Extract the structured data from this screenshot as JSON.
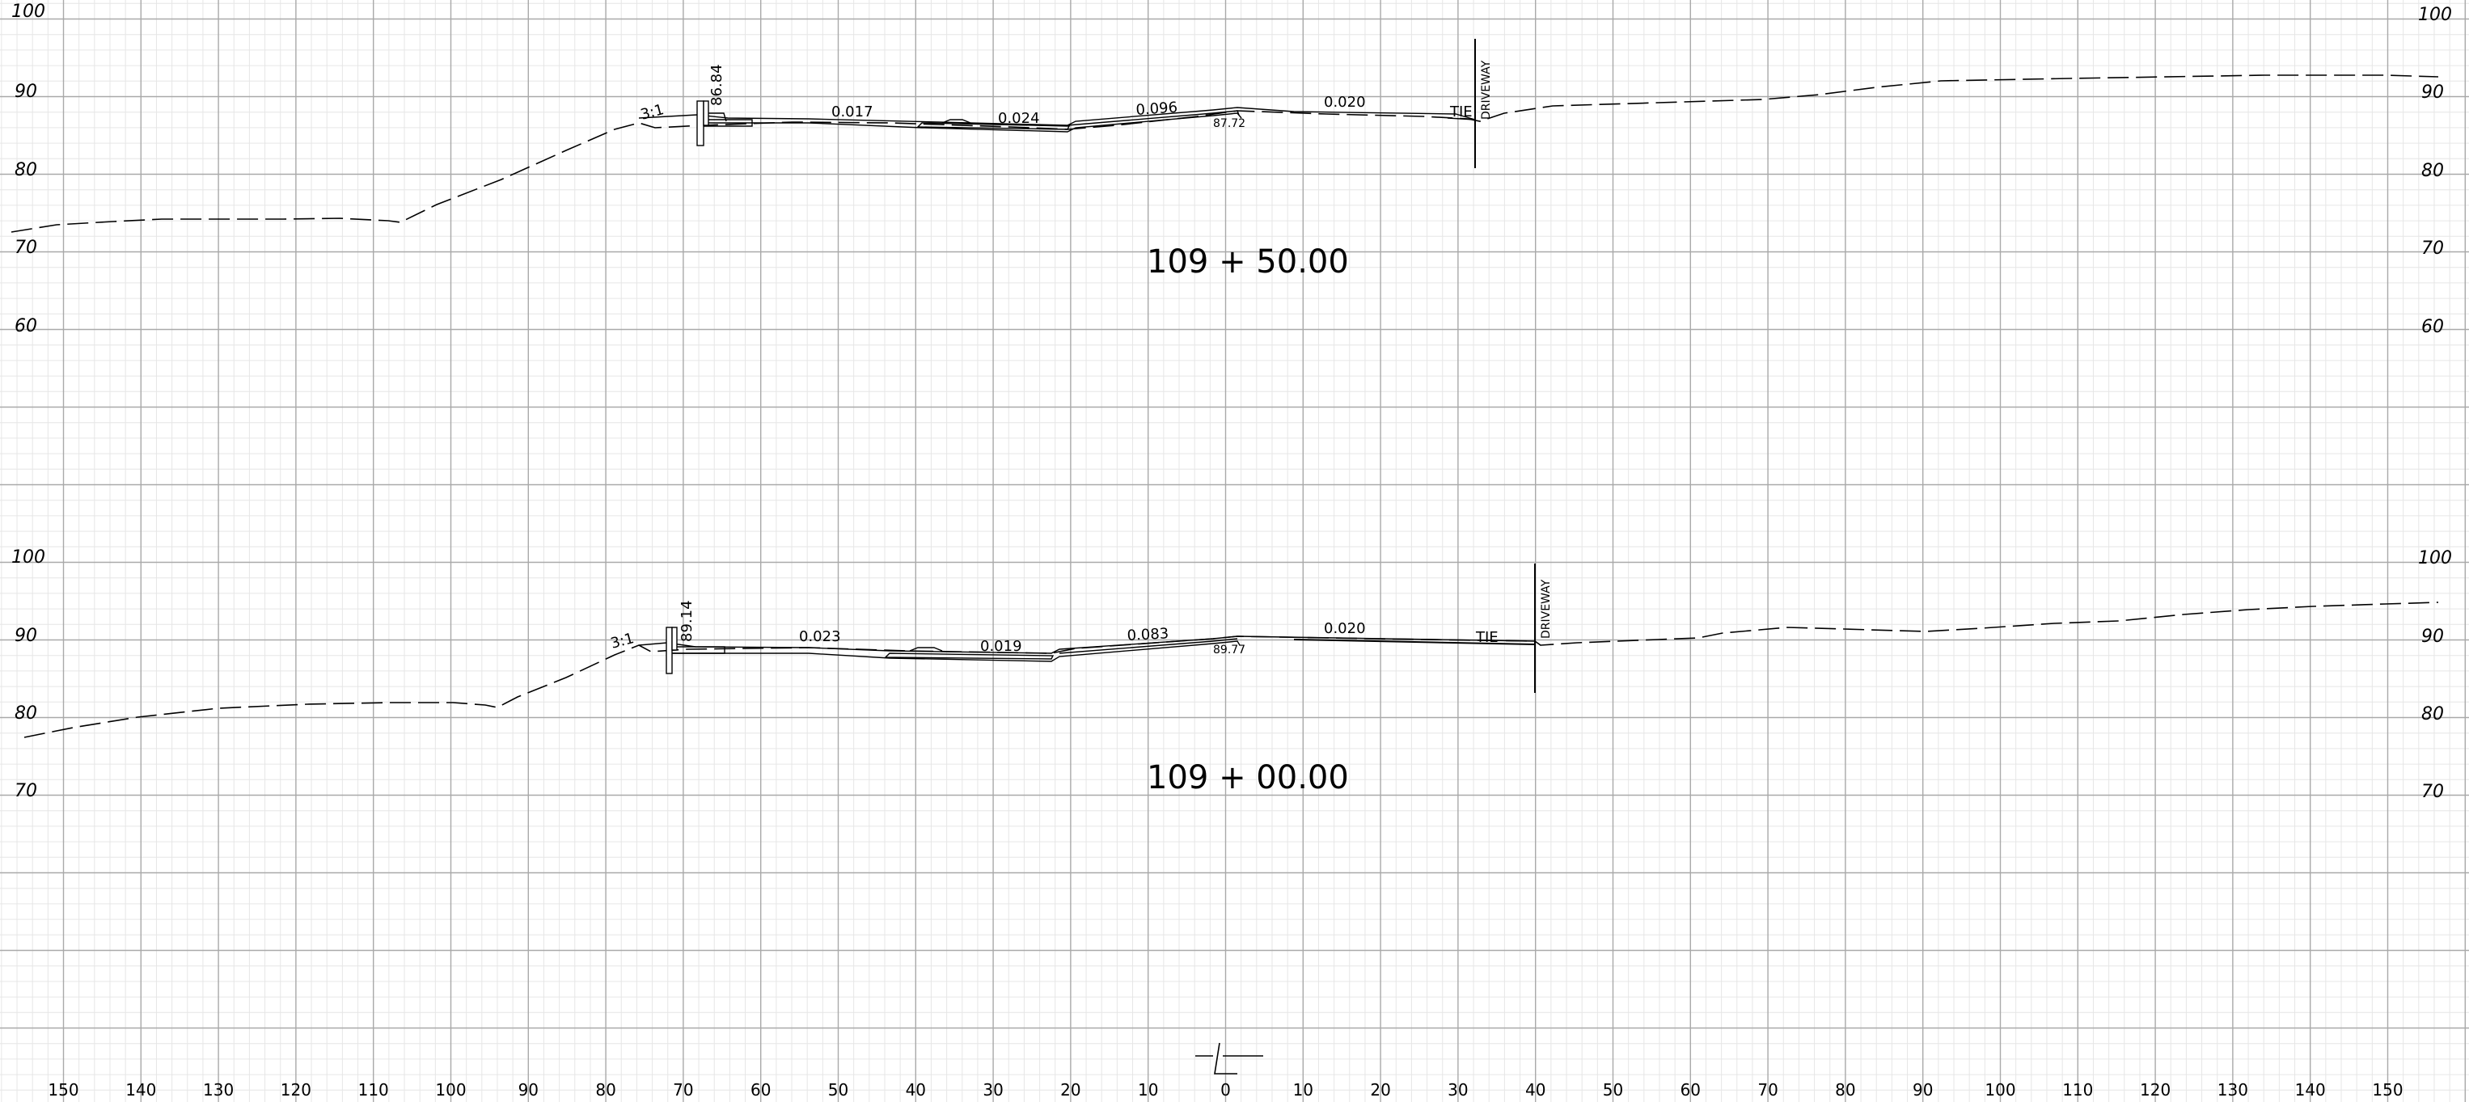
{
  "grid": {
    "minor_color": "#e6e6e6",
    "major_color": "#a9a9a9",
    "line_color": "#000000"
  },
  "x_axis": {
    "labels": [
      "150",
      "140",
      "130",
      "120",
      "110",
      "100",
      "90",
      "80",
      "70",
      "60",
      "50",
      "40",
      "30",
      "20",
      "10",
      "0",
      "10",
      "20",
      "30",
      "40",
      "50",
      "60",
      "70",
      "80",
      "90",
      "100",
      "110",
      "120",
      "130",
      "140",
      "150"
    ]
  },
  "centerline_symbol": "centerline-symbol",
  "sections": [
    {
      "station": "109 + 50.00",
      "elevation_labels_left": [
        "100",
        "90",
        "80",
        "70",
        "60"
      ],
      "elevation_labels_right": [
        "100",
        "90",
        "80",
        "70",
        "60"
      ],
      "slope_labels": [
        "3:1",
        "0.017",
        "0.024",
        "0.096",
        "0.020"
      ],
      "curb_elevation": "86.84",
      "centerline_elevation": "87.72",
      "tie_label": "TIE",
      "driveway_label": "DRIVEWAY"
    },
    {
      "station": "109 + 00.00",
      "elevation_labels_left": [
        "100",
        "90",
        "80",
        "70"
      ],
      "elevation_labels_right": [
        "100",
        "90",
        "80",
        "70"
      ],
      "slope_labels": [
        "3:1",
        "0.023",
        "0.019",
        "0.083",
        "0.020"
      ],
      "curb_elevation": "89.14",
      "centerline_elevation": "89.77",
      "tie_label": "TIE",
      "driveway_label": "DRIVEWAY"
    }
  ]
}
